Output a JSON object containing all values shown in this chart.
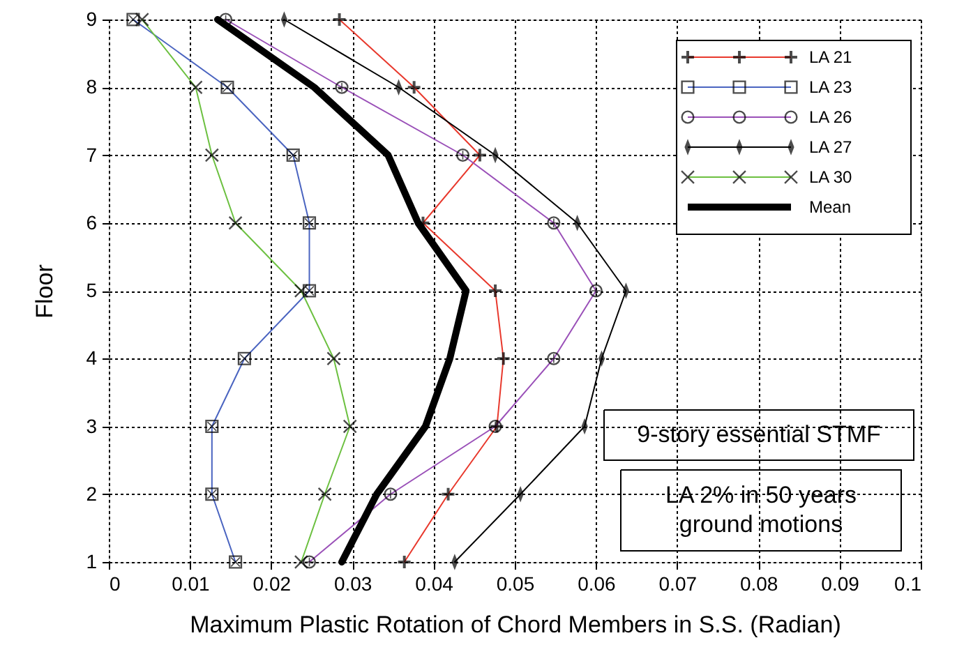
{
  "chart_data": {
    "type": "line",
    "xlabel": "Maximum Plastic Rotation of Chord Members in S.S. (Radian)",
    "ylabel": "Floor",
    "xlim": [
      0,
      0.1
    ],
    "xticks": [
      0,
      0.01,
      0.02,
      0.03,
      0.04,
      0.05,
      0.06,
      0.07,
      0.08,
      0.09,
      0.1
    ],
    "ylim": [
      1,
      9
    ],
    "yticks": [
      1,
      2,
      3,
      4,
      5,
      6,
      7,
      8,
      9
    ],
    "grid": true,
    "legend": "top right",
    "annotations": [
      "9-story essential STMF",
      "LA 2% in 50 years\nground motions"
    ],
    "series": [
      {
        "name": "LA 21",
        "color": "#e8382c",
        "marker": "cross",
        "x": [
          0.0364,
          0.0418,
          0.0478,
          0.0486,
          0.0476,
          0.0387,
          0.0457,
          0.0376,
          0.0284
        ],
        "values": [
          1,
          2,
          3,
          4,
          5,
          6,
          7,
          8,
          9
        ]
      },
      {
        "name": "LA 23",
        "color": "#4a64c0",
        "marker": "square",
        "x": [
          0.0156,
          0.0127,
          0.0127,
          0.0167,
          0.0247,
          0.0247,
          0.0227,
          0.0146,
          0.003
        ],
        "values": [
          1,
          2,
          3,
          4,
          5,
          6,
          7,
          8,
          9
        ]
      },
      {
        "name": "LA 26",
        "color": "#9a50b8",
        "marker": "circle",
        "x": [
          0.0247,
          0.0347,
          0.0476,
          0.0548,
          0.06,
          0.0548,
          0.0436,
          0.0287,
          0.0144
        ],
        "values": [
          1,
          2,
          3,
          4,
          5,
          6,
          7,
          8,
          9
        ]
      },
      {
        "name": "LA 27",
        "color": "#000000",
        "marker": "diamond",
        "x": [
          0.0426,
          0.0507,
          0.0586,
          0.0607,
          0.0637,
          0.0577,
          0.0476,
          0.0357,
          0.0216
        ],
        "values": [
          1,
          2,
          3,
          4,
          5,
          6,
          7,
          8,
          9
        ]
      },
      {
        "name": "LA 30",
        "color": "#6cc040",
        "marker": "x",
        "x": [
          0.0237,
          0.0266,
          0.0297,
          0.0277,
          0.0237,
          0.0156,
          0.0127,
          0.0107,
          0.0041
        ],
        "values": [
          1,
          2,
          3,
          4,
          5,
          6,
          7,
          8,
          9
        ]
      },
      {
        "name": "Mean",
        "color": "#000000",
        "marker": "none",
        "x": [
          0.0287,
          0.033,
          0.039,
          0.042,
          0.044,
          0.0381,
          0.0344,
          0.0253,
          0.0134
        ],
        "values": [
          1,
          2,
          3,
          4,
          5,
          6,
          7,
          8,
          9
        ]
      }
    ]
  }
}
